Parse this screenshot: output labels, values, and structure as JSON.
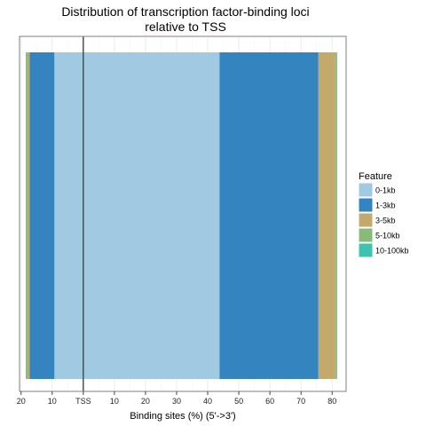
{
  "chart_data": {
    "type": "bar",
    "orientation": "horizontal-stacked",
    "title": "Distribution of transcription factor-binding loci",
    "subtitle": "relative to TSS",
    "xlabel": "Binding sites (%) (5'->3')",
    "ylabel": "",
    "x_range": [
      -20.5,
      84.5
    ],
    "reference_line": {
      "x": 0,
      "label": "TSS"
    },
    "x_ticks": [
      {
        "value": -20,
        "label": "20"
      },
      {
        "value": -10,
        "label": "10"
      },
      {
        "value": 0,
        "label": "TSS"
      },
      {
        "value": 10,
        "label": "10"
      },
      {
        "value": 20,
        "label": "20"
      },
      {
        "value": 30,
        "label": "30"
      },
      {
        "value": 40,
        "label": "40"
      },
      {
        "value": 50,
        "label": "50"
      },
      {
        "value": 60,
        "label": "60"
      },
      {
        "value": 70,
        "label": "70"
      },
      {
        "value": 80,
        "label": "80"
      }
    ],
    "grid": true,
    "legend": {
      "title": "Feature",
      "position": "right"
    },
    "features": [
      {
        "name": "0-1kb",
        "color": "#a0cae1"
      },
      {
        "name": "1-3kb",
        "color": "#3484bf"
      },
      {
        "name": "3-5kb",
        "color": "#c4a96c"
      },
      {
        "name": "5-10kb",
        "color": "#88bb77"
      },
      {
        "name": "10-100kb",
        "color": "#3ec3b0"
      }
    ],
    "upstream": [
      {
        "feature": "0-1kb",
        "value": 9.3
      },
      {
        "feature": "1-3kb",
        "value": 8.0
      },
      {
        "feature": "3-5kb",
        "value": 0.5
      },
      {
        "feature": "5-10kb",
        "value": 0.6
      },
      {
        "feature": "10-100kb",
        "value": 0.1
      }
    ],
    "downstream": [
      {
        "feature": "0-1kb",
        "value": 43.8
      },
      {
        "feature": "1-3kb",
        "value": 31.8
      },
      {
        "feature": "3-5kb",
        "value": 5.4
      },
      {
        "feature": "5-10kb",
        "value": 0.5
      },
      {
        "feature": "10-100kb",
        "value": 0.1
      }
    ]
  }
}
